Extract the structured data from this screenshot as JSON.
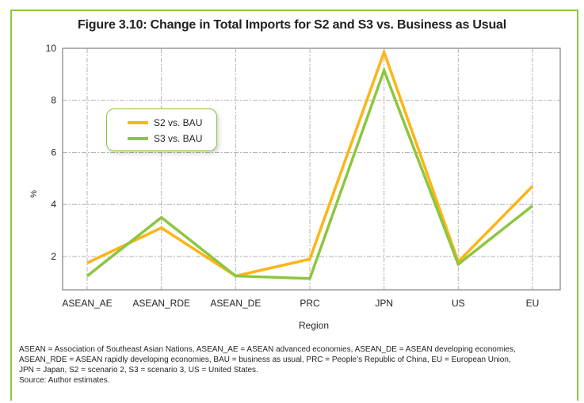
{
  "chart_data": {
    "type": "line",
    "title": "Figure 3.10: Change in Total Imports for S2 and S3 vs. Business as Usual",
    "xlabel": "Region",
    "ylabel": "%",
    "categories": [
      "ASEAN_AE",
      "ASEAN_RDE",
      "ASEAN_DE",
      "PRC",
      "JPN",
      "US",
      "EU"
    ],
    "yticks": [
      2,
      4,
      6,
      8,
      10
    ],
    "ylim": [
      0.72,
      10
    ],
    "grid": true,
    "legend_position": "upper-left",
    "series": [
      {
        "name": "S2 vs. BAU",
        "color": "#fdb515",
        "values": [
          1.75,
          3.1,
          1.25,
          1.9,
          9.85,
          1.8,
          4.7
        ]
      },
      {
        "name": "S3 vs. BAU",
        "color": "#8dc63f",
        "values": [
          1.25,
          3.5,
          1.25,
          1.15,
          9.15,
          1.7,
          3.95
        ]
      }
    ]
  },
  "notes": [
    "ASEAN = Association of Southeast Asian Nations, ASEAN_AE = ASEAN advanced economies, ASEAN_DE = ASEAN developing economies,",
    "ASEAN_RDE = ASEAN rapidly developing economies, BAU = business as usual, PRC = People’s Republic of China, EU = European Union,",
    "JPN = Japan, S2 = scenario 2, S3 = scenario 3, US = United States.",
    "Source: Author estimates."
  ],
  "colors": {
    "frame": "#8dc63f",
    "grid": "#b3b3b3",
    "axis": "#808080"
  }
}
